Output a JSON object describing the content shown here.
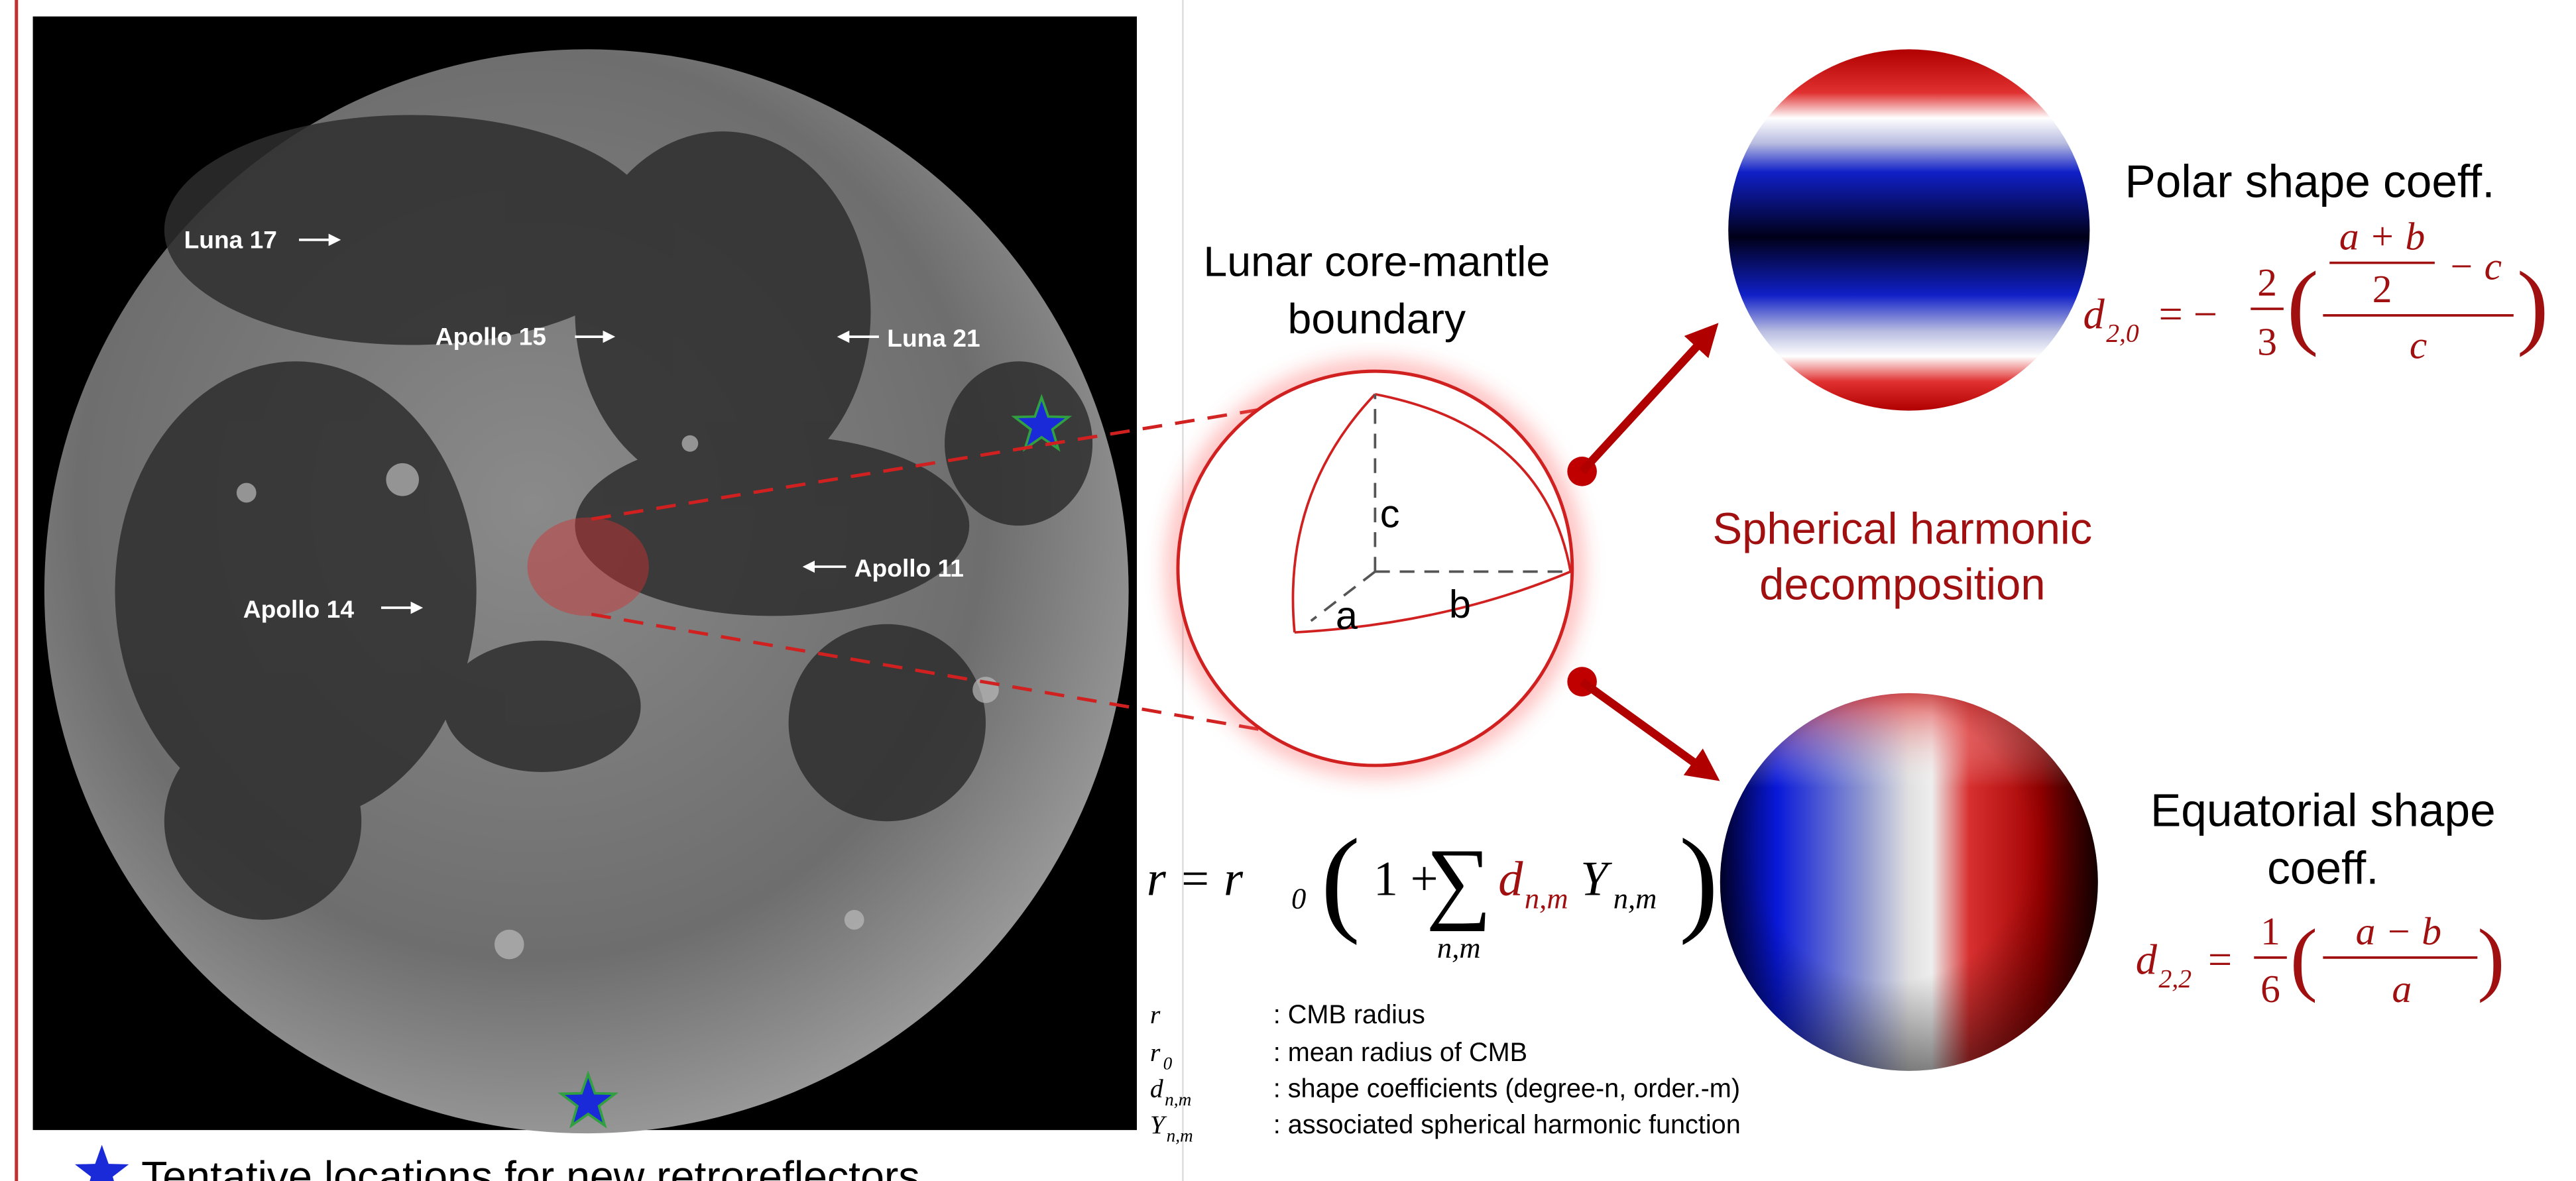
{
  "moon_labels": [
    "Luna 17",
    "Apollo 15",
    "Luna 21",
    "Apollo 14",
    "Apollo 11"
  ],
  "cmb_title": [
    "Lunar core-mantle",
    "boundary"
  ],
  "axis_labels": {
    "a": "a",
    "b": "b",
    "c": "c"
  },
  "center_label": [
    "Spherical harmonic",
    "decomposition"
  ],
  "polar": {
    "title": "Polar shape coeff.",
    "formula": {
      "symbol": "d",
      "sub": "2,0",
      "equals": "= −",
      "coef_num": "2",
      "coef_den": "3",
      "open": "(",
      "inner_num": "a + b",
      "inner_den": "2",
      "minus_c": "− c",
      "den": "c",
      "close": ")"
    }
  },
  "equatorial": {
    "title": [
      "Equatorial shape",
      "coeff."
    ],
    "formula": {
      "symbol": "d",
      "sub": "2,2",
      "equals": "=",
      "coef_num": "1",
      "coef_den": "6",
      "open": "(",
      "num": "a − b",
      "den": "a",
      "close": ")"
    }
  },
  "main_formula": {
    "lhs": "r = r",
    "lhs_sub": "0",
    "open": "(",
    "one_plus": "1 +",
    "sigma": "∑",
    "sigma_sub": "n,m",
    "d": "d",
    "d_sub": "n,m",
    "y": "Y",
    "y_sub": "n,m",
    "close": ")"
  },
  "legend": [
    {
      "symbol": "r",
      "desc": ": CMB radius"
    },
    {
      "symbol": "r",
      "sub": "0",
      "desc": ": mean radius of CMB"
    },
    {
      "symbol": "d",
      "sub": "n,m",
      "desc": ": shape coefficients (degree-n, order.-m)"
    },
    {
      "symbol": "Y",
      "sub": "n,m",
      "desc": ": associated spherical harmonic function"
    }
  ],
  "footnote": "Tentative locations for new retroreflectors"
}
